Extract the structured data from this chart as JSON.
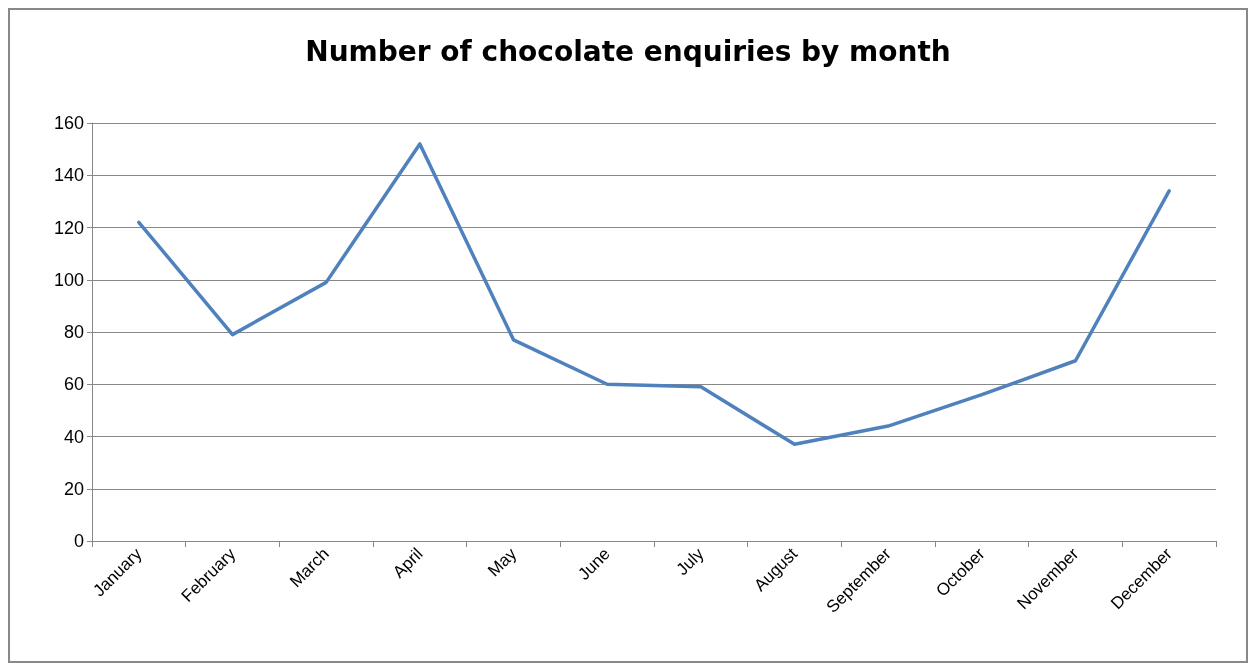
{
  "chart_data": {
    "type": "line",
    "title": "Number of chocolate enquiries by month",
    "categories": [
      "January",
      "February",
      "March",
      "April",
      "May",
      "June",
      "July",
      "August",
      "September",
      "October",
      "November",
      "December"
    ],
    "values": [
      122,
      79,
      99,
      152,
      77,
      60,
      59,
      37,
      44,
      56,
      69,
      134
    ],
    "color": "#4f81bd",
    "ylim": [
      0,
      160
    ],
    "yticks": [
      0,
      20,
      40,
      60,
      80,
      100,
      120,
      140,
      160
    ],
    "grid": "y",
    "marker": "none",
    "line_style": "solid"
  }
}
